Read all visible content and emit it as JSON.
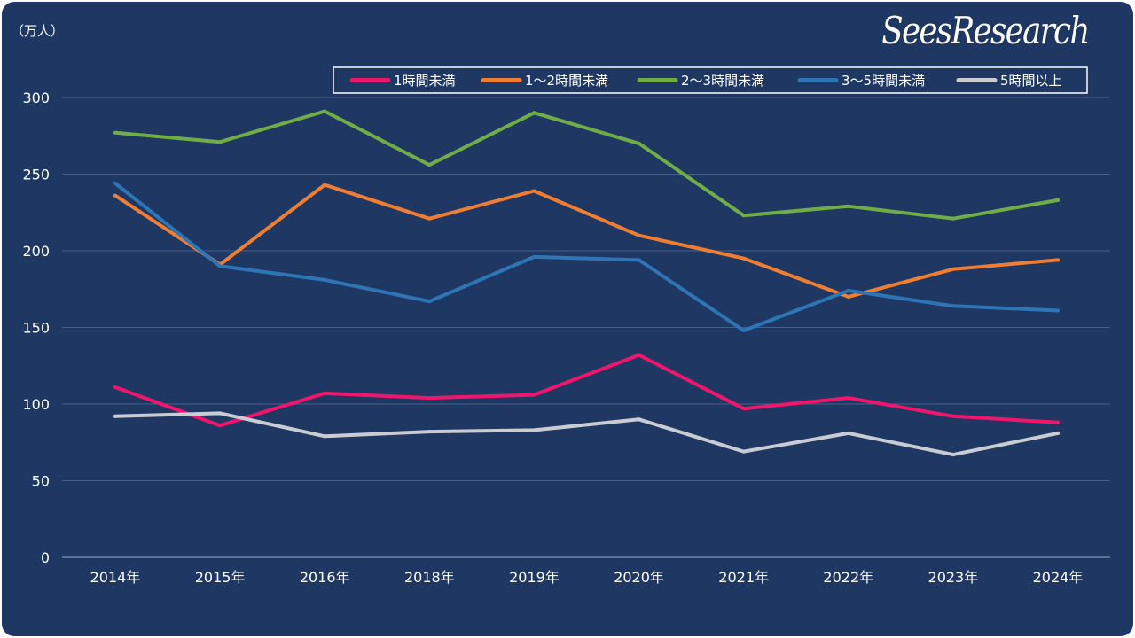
{
  "brand": "SeesResearch",
  "unit_label": "（万人）",
  "colors": {
    "background": "#1f3763",
    "grid": "#4a5f88",
    "axis": "#9aa8c4"
  },
  "chart_data": {
    "type": "line",
    "title": "",
    "xlabel": "",
    "ylabel": "（万人）",
    "ylim": [
      0,
      300
    ],
    "yticks": [
      0,
      50,
      100,
      150,
      200,
      250,
      300
    ],
    "grid": true,
    "legend_position": "top-right",
    "categories": [
      "2014年",
      "2015年",
      "2016年",
      "2018年",
      "2019年",
      "2020年",
      "2021年",
      "2022年",
      "2023年",
      "2024年"
    ],
    "series": [
      {
        "name": "1時間未満",
        "color": "#f0166c",
        "values": [
          111,
          86,
          107,
          104,
          106,
          132,
          97,
          104,
          92,
          88
        ]
      },
      {
        "name": "1～2時間未満",
        "color": "#ef7d32",
        "values": [
          236,
          191,
          243,
          221,
          239,
          210,
          195,
          170,
          188,
          194
        ]
      },
      {
        "name": "2～3時間未満",
        "color": "#70ad47",
        "values": [
          277,
          271,
          291,
          256,
          290,
          270,
          223,
          229,
          221,
          233
        ]
      },
      {
        "name": "3～5時間未満",
        "color": "#2e75b6",
        "values": [
          244,
          190,
          181,
          167,
          196,
          194,
          148,
          174,
          164,
          161
        ]
      },
      {
        "name": "5時間以上",
        "color": "#c9cdd3",
        "values": [
          92,
          94,
          79,
          82,
          83,
          90,
          69,
          81,
          67,
          81
        ]
      }
    ]
  }
}
